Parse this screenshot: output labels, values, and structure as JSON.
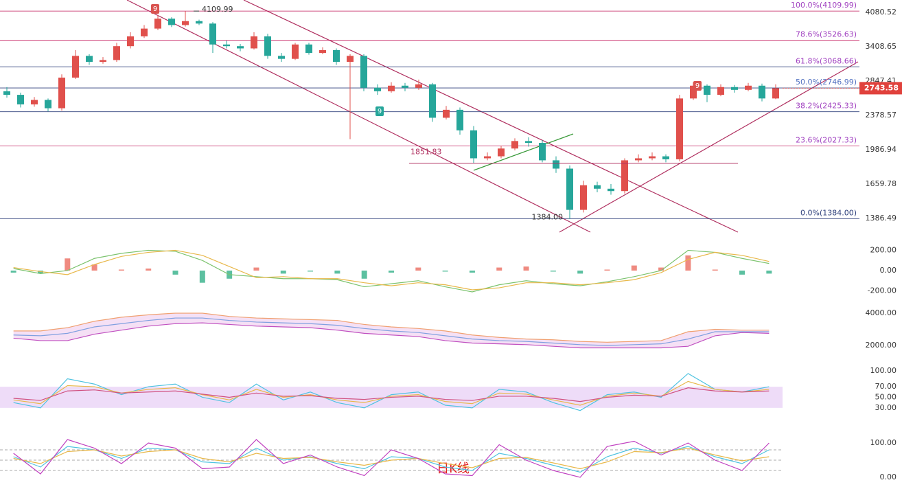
{
  "chart_data": [
    {
      "type": "candlestick",
      "log_scale": true,
      "ylim": [
        1281,
        4356
      ],
      "yticks": [
        4080.52,
        3408.65,
        2847.41,
        2378.57,
        1986.94,
        1659.78,
        1386.49
      ],
      "up_color": "#e0504c",
      "down_color": "#26a69a",
      "open": [
        2700,
        2650,
        2520,
        2580,
        2470,
        2900,
        3250,
        3150,
        3180,
        3420,
        3600,
        3750,
        3950,
        3820,
        3900,
        3850,
        3450,
        3420,
        3380,
        3600,
        3250,
        3200,
        3450,
        3300,
        3350,
        3150,
        3250,
        2750,
        2700,
        2780,
        2750,
        2800,
        2350,
        2450,
        2200,
        1900,
        1920,
        2000,
        2080,
        2060,
        1880,
        1800,
        1450,
        1650,
        1620,
        1600,
        1880,
        1900,
        1920,
        1890,
        2600,
        2780,
        2650,
        2760,
        2720,
        2780,
        2600
      ],
      "high": [
        2760,
        2680,
        2620,
        2600,
        2950,
        3350,
        3280,
        3230,
        3480,
        3680,
        3820,
        4020,
        3980,
        4109.99,
        3930,
        3880,
        3520,
        3460,
        3680,
        3650,
        3300,
        3480,
        3480,
        3400,
        3380,
        3280,
        3280,
        2800,
        2830,
        2820,
        2870,
        2820,
        2500,
        2480,
        2250,
        1960,
        2030,
        2110,
        2120,
        2090,
        1920,
        1830,
        1690,
        1680,
        1660,
        1900,
        1940,
        1960,
        1940,
        2650,
        2830,
        2800,
        2800,
        2790,
        2820,
        2810,
        2800
      ],
      "low": [
        2610,
        2480,
        2490,
        2430,
        2440,
        2880,
        3100,
        3120,
        3150,
        3380,
        3570,
        3720,
        3780,
        3790,
        3820,
        3300,
        3380,
        3330,
        3360,
        3200,
        3150,
        3180,
        3270,
        3280,
        3100,
        2100,
        2700,
        2650,
        2680,
        2700,
        2720,
        2300,
        2330,
        2150,
        1850,
        1880,
        1900,
        1980,
        2020,
        1860,
        1760,
        1384,
        1430,
        1590,
        1570,
        1580,
        1860,
        1880,
        1860,
        1870,
        2580,
        2550,
        2630,
        2680,
        2700,
        2560,
        2590
      ],
      "close": [
        2650,
        2520,
        2580,
        2470,
        2900,
        3250,
        3150,
        3180,
        3420,
        3600,
        3750,
        3950,
        3820,
        3900,
        3850,
        3450,
        3420,
        3380,
        3600,
        3250,
        3200,
        3450,
        3300,
        3350,
        3150,
        3250,
        2750,
        2700,
        2780,
        2750,
        2800,
        2350,
        2450,
        2200,
        1900,
        1920,
        2000,
        2080,
        2060,
        1880,
        1800,
        1450,
        1650,
        1620,
        1600,
        1880,
        1900,
        1920,
        1890,
        2600,
        2780,
        2650,
        2760,
        2720,
        2780,
        2600,
        2743.58
      ],
      "fib_levels": [
        {
          "value": 4109.99,
          "label": "100.0%(4109.99)",
          "color": "#c2185b",
          "text_color": "#a040c0"
        },
        {
          "value": 3526.63,
          "label": "78.6%(3526.63)",
          "color": "#c2185b",
          "text_color": "#a040c0"
        },
        {
          "value": 3068.66,
          "label": "61.8%(3068.66)",
          "color": "#2c3e7a",
          "text_color": "#a040c0"
        },
        {
          "value": 2746.99,
          "label": "50.0%(2746.99)",
          "color": "#2c3e7a",
          "text_color": "#5070c0"
        },
        {
          "value": 2425.33,
          "label": "38.2%(2425.33)",
          "color": "#2c3e7a",
          "text_color": "#a040c0"
        },
        {
          "value": 2027.33,
          "label": "23.6%(2027.33)",
          "color": "#c2185b",
          "text_color": "#a040c0"
        },
        {
          "value": 1384,
          "label": "0.0%(1384.00)",
          "color": "#2c3e7a",
          "text_color": "#2c3e7a"
        }
      ],
      "price_marks": [
        4109.99,
        1851.83,
        {
          "value": 1384,
          "label": "1384.00"
        }
      ],
      "td_marks": [
        9,
        9,
        9
      ],
      "td_colors": [
        "#d9534f",
        "#26a69a",
        "#d9534f"
      ],
      "caption": "日K线"
    },
    {
      "type": "macd",
      "ylim": [
        -312,
        298
      ],
      "yticks": [
        {
          "value": 200,
          "label": "200.00"
        },
        {
          "value": 0,
          "label": "0.00"
        },
        {
          "value": -200,
          "label": "-200.00"
        }
      ],
      "histogram": [
        -20,
        -30,
        120,
        60,
        10,
        20,
        -40,
        -120,
        -80,
        30,
        -30,
        -10,
        -30,
        -80,
        -20,
        30,
        -10,
        -20,
        30,
        40,
        -10,
        -30,
        10,
        50,
        30,
        150,
        10,
        -40,
        -30
      ],
      "series": [
        {
          "color": "#7cc36e",
          "values": [
            20,
            -30,
            0,
            120,
            170,
            200,
            190,
            100,
            -40,
            -60,
            -80,
            -80,
            -90,
            -160,
            -130,
            -100,
            -160,
            -210,
            -140,
            -100,
            -130,
            -150,
            -110,
            -60,
            0,
            200,
            180,
            120,
            70
          ]
        },
        {
          "color": "#e8b84a",
          "values": [
            30,
            -10,
            -40,
            60,
            140,
            180,
            200,
            150,
            40,
            -70,
            -60,
            -80,
            -80,
            -120,
            -150,
            -120,
            -140,
            -190,
            -170,
            -120,
            -120,
            -140,
            -120,
            -90,
            -20,
            110,
            180,
            150,
            90
          ]
        }
      ]
    },
    {
      "type": "bands",
      "ylim": [
        1277,
        4468
      ],
      "yticks": [
        {
          "value": 4000,
          "label": "4000.00"
        },
        {
          "value": 2000,
          "label": "2000.00"
        }
      ],
      "series": [
        {
          "color": "#f0a070",
          "values": [
            2900,
            2900,
            3100,
            3500,
            3750,
            3900,
            4000,
            4000,
            3800,
            3700,
            3650,
            3600,
            3550,
            3300,
            3150,
            3050,
            2900,
            2650,
            2500,
            2400,
            2350,
            2250,
            2200,
            2250,
            2300,
            2850,
            3000,
            2950,
            2950
          ]
        },
        {
          "color": "#80a0e0",
          "values": [
            2650,
            2600,
            2750,
            3150,
            3350,
            3550,
            3700,
            3700,
            3550,
            3450,
            3400,
            3350,
            3250,
            3050,
            2900,
            2800,
            2600,
            2400,
            2300,
            2250,
            2150,
            2050,
            2000,
            2050,
            2100,
            2400,
            2850,
            2850,
            2850
          ]
        },
        {
          "color": "#c050c0",
          "values": [
            2450,
            2300,
            2300,
            2700,
            2950,
            3200,
            3350,
            3400,
            3300,
            3200,
            3150,
            3100,
            2950,
            2750,
            2650,
            2550,
            2300,
            2150,
            2100,
            2050,
            1950,
            1850,
            1850,
            1850,
            1850,
            1950,
            2600,
            2800,
            2750
          ]
        }
      ]
    },
    {
      "type": "oscillator",
      "ylim": [
        9,
        113
      ],
      "band": [
        30,
        70
      ],
      "yticks": [
        {
          "value": 100,
          "label": "100.00"
        },
        {
          "value": 70,
          "label": "70.00"
        },
        {
          "value": 50,
          "label": "50.00"
        },
        {
          "value": 30,
          "label": "30.00"
        }
      ],
      "series": [
        {
          "color": "#4fc3e0",
          "values": [
            40,
            30,
            85,
            75,
            55,
            70,
            75,
            50,
            40,
            75,
            45,
            60,
            40,
            30,
            55,
            60,
            35,
            30,
            65,
            60,
            40,
            25,
            55,
            60,
            50,
            95,
            65,
            60,
            70
          ]
        },
        {
          "color": "#e8b84a",
          "values": [
            45,
            38,
            72,
            70,
            58,
            65,
            68,
            55,
            45,
            65,
            50,
            55,
            45,
            40,
            52,
            55,
            42,
            38,
            58,
            56,
            45,
            35,
            52,
            58,
            52,
            80,
            65,
            60,
            65
          ]
        },
        {
          "color": "#d05080",
          "values": [
            48,
            44,
            62,
            64,
            58,
            60,
            62,
            56,
            50,
            58,
            52,
            53,
            48,
            46,
            50,
            52,
            46,
            44,
            52,
            52,
            48,
            42,
            50,
            54,
            52,
            68,
            62,
            60,
            62
          ]
        }
      ]
    },
    {
      "type": "oscillator",
      "ylim": [
        -20,
        130
      ],
      "ref_lines": [
        80,
        50,
        20
      ],
      "yticks": [
        {
          "value": 100,
          "label": "100.00"
        },
        {
          "value": 0,
          "label": "0.00"
        }
      ],
      "series": [
        {
          "color": "#4fc3e0",
          "values": [
            60,
            30,
            90,
            80,
            55,
            85,
            80,
            45,
            40,
            85,
            50,
            60,
            40,
            25,
            60,
            55,
            30,
            20,
            70,
            55,
            35,
            15,
            60,
            85,
            70,
            90,
            60,
            40,
            80
          ]
        },
        {
          "color": "#e8b84a",
          "values": [
            55,
            40,
            75,
            80,
            62,
            75,
            80,
            55,
            45,
            70,
            55,
            58,
            45,
            35,
            50,
            55,
            40,
            28,
            55,
            58,
            42,
            25,
            45,
            75,
            72,
            85,
            65,
            48,
            60
          ]
        },
        {
          "color": "#c040c0",
          "values": [
            70,
            10,
            110,
            85,
            40,
            100,
            85,
            25,
            30,
            110,
            40,
            65,
            30,
            5,
            80,
            55,
            10,
            5,
            95,
            50,
            20,
            0,
            90,
            105,
            65,
            100,
            50,
            20,
            100
          ]
        }
      ]
    }
  ]
}
